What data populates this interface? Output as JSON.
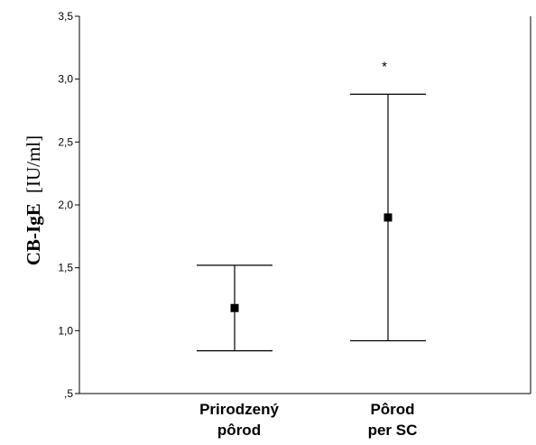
{
  "chart_data": {
    "type": "errorbar",
    "ylabel": "CB-IgE",
    "ylabel_unit": "[IU/ml]",
    "categories": [
      [
        "Prirodzený",
        "pôrod"
      ],
      [
        "Pôrod",
        "per SC"
      ]
    ],
    "points": [
      {
        "mean": 1.18,
        "lower": 0.84,
        "upper": 1.52,
        "annotation": ""
      },
      {
        "mean": 1.9,
        "lower": 0.92,
        "upper": 2.88,
        "annotation": "*"
      }
    ],
    "ylim": [
      0.5,
      3.5
    ],
    "yticks": [
      0.5,
      1.0,
      1.5,
      2.0,
      2.5,
      3.0,
      3.5
    ],
    "ytick_labels": [
      ",5",
      "1,0",
      "1,5",
      "2,0",
      "2,5",
      "3,0",
      "3,5"
    ],
    "grid": false,
    "legend": "none"
  }
}
